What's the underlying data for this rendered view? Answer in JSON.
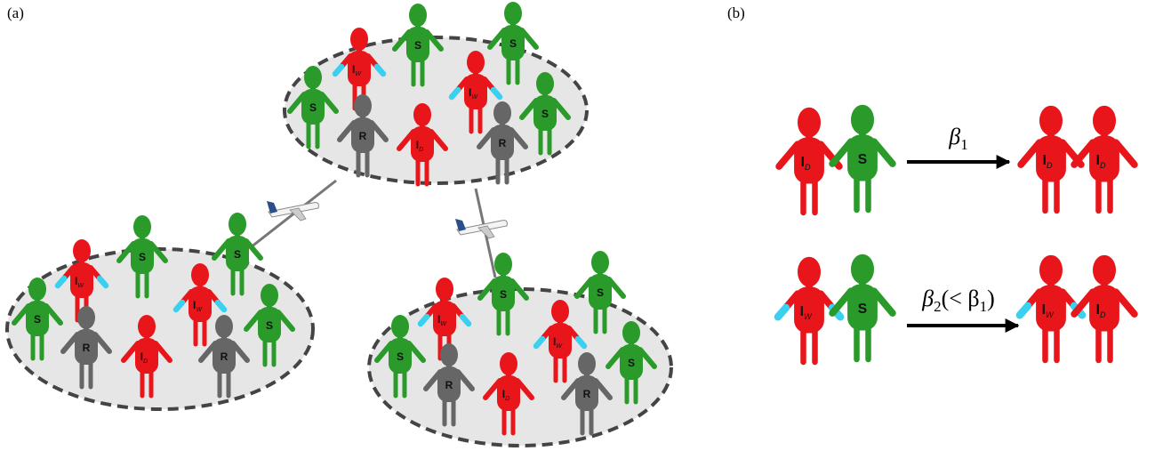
{
  "panel_a": {
    "label": "(a)",
    "groups": [
      {
        "people": [
          {
            "letter": "S"
          },
          {
            "letter": "S"
          },
          {
            "letter": "I",
            "sub": "W"
          },
          {
            "letter": "I",
            "sub": "W"
          },
          {
            "letter": "S"
          },
          {
            "letter": "R"
          },
          {
            "letter": "I",
            "sub": "D"
          },
          {
            "letter": "R"
          },
          {
            "letter": "S"
          }
        ]
      },
      {
        "people": [
          {
            "letter": "S"
          },
          {
            "letter": "S"
          },
          {
            "letter": "I",
            "sub": "W"
          },
          {
            "letter": "I",
            "sub": "W"
          },
          {
            "letter": "S"
          },
          {
            "letter": "R"
          },
          {
            "letter": "I",
            "sub": "D"
          },
          {
            "letter": "R"
          },
          {
            "letter": "S"
          }
        ]
      },
      {
        "people": [
          {
            "letter": "S"
          },
          {
            "letter": "S"
          },
          {
            "letter": "I",
            "sub": "W"
          },
          {
            "letter": "I",
            "sub": "W"
          },
          {
            "letter": "S"
          },
          {
            "letter": "R"
          },
          {
            "letter": "I",
            "sub": "D"
          },
          {
            "letter": "R"
          },
          {
            "letter": "S"
          }
        ]
      }
    ]
  },
  "panel_b": {
    "label": "(b)",
    "rules": [
      {
        "before": [
          {
            "letter": "I",
            "sub": "D"
          },
          {
            "letter": "S"
          }
        ],
        "rate": {
          "symbol": "β",
          "sub": "1"
        },
        "after": [
          {
            "letter": "I",
            "sub": "D"
          },
          {
            "letter": "I",
            "sub": "D"
          }
        ]
      },
      {
        "before": [
          {
            "letter": "I",
            "sub": "W"
          },
          {
            "letter": "S"
          }
        ],
        "rate": {
          "symbol": "β",
          "sub": "2",
          "note": "(< β",
          "note_sub": "1",
          "close": ")"
        },
        "after": [
          {
            "letter": "I",
            "sub": "W"
          },
          {
            "letter": "I",
            "sub": "D"
          }
        ]
      }
    ]
  }
}
